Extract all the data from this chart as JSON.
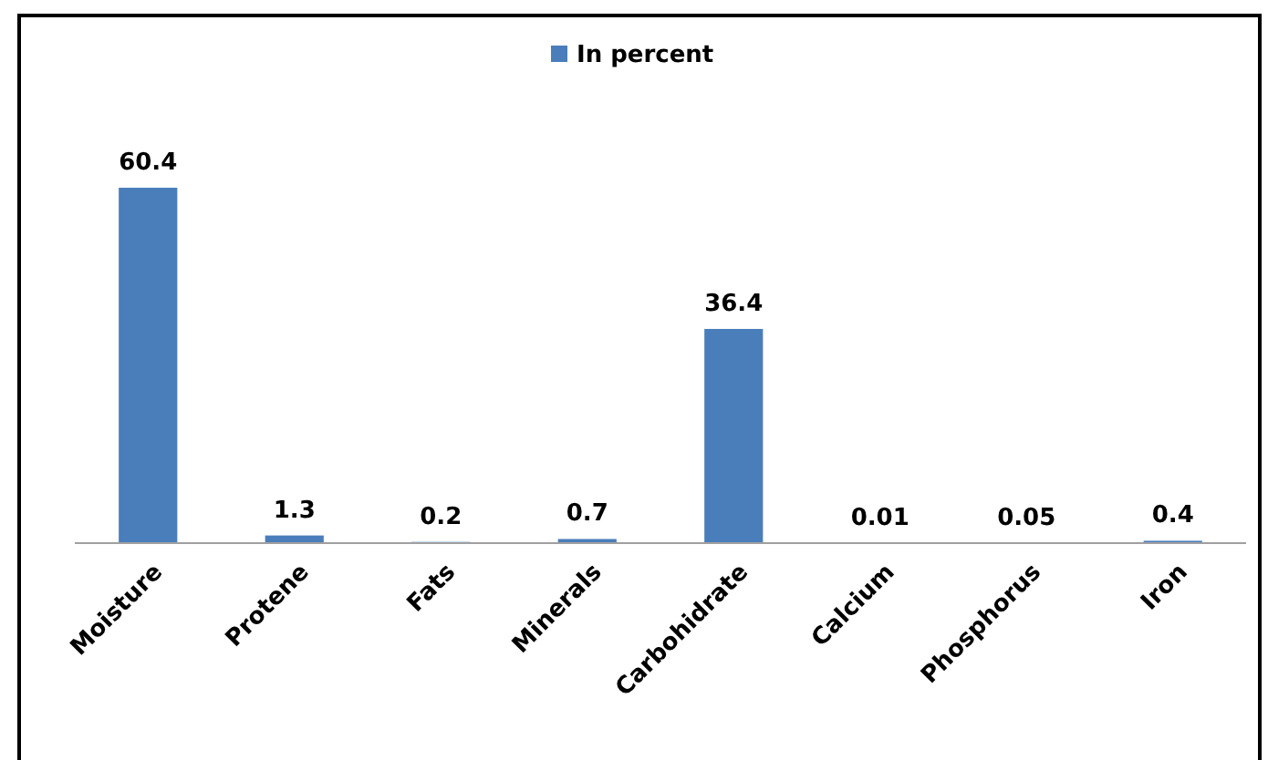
{
  "chart_data": {
    "type": "bar",
    "categories": [
      "Moisture",
      "Protene",
      "Fats",
      "Minerals",
      "Carbohidrate",
      "Calcium",
      "Phosphorus",
      "Iron"
    ],
    "series": [
      {
        "name": "In percent",
        "color": "#4a7ebb",
        "values": [
          60.4,
          1.3,
          0.2,
          0.7,
          36.4,
          0.01,
          0.05,
          0.4
        ]
      }
    ],
    "data_labels": true,
    "legend": "top"
  }
}
